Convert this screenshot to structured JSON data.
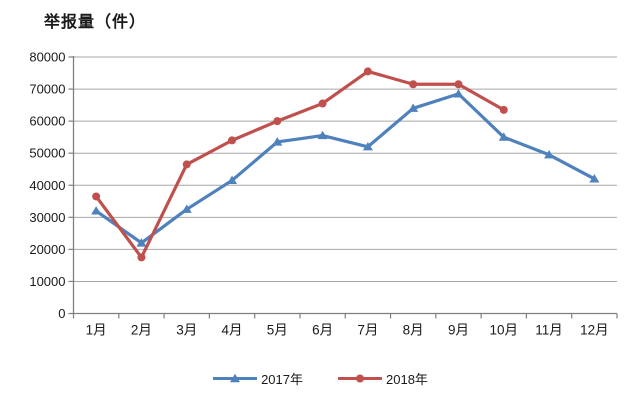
{
  "page": {
    "title": "举报量（件）"
  },
  "chart_data": {
    "type": "line",
    "title": "举报量（件）",
    "xlabel": "",
    "ylabel": "举报量（件）",
    "categories": [
      "1月",
      "2月",
      "3月",
      "4月",
      "5月",
      "6月",
      "7月",
      "8月",
      "9月",
      "10月",
      "11月",
      "12月"
    ],
    "series": [
      {
        "name": "2017年",
        "color": "#4F81BD",
        "marker": "triangle",
        "values": [
          32000,
          22000,
          32500,
          41500,
          53500,
          55500,
          52000,
          64000,
          68500,
          55000,
          49500,
          42000
        ]
      },
      {
        "name": "2018年",
        "color": "#C0504D",
        "marker": "circle",
        "values": [
          36500,
          17500,
          46500,
          54000,
          60000,
          65500,
          75500,
          71500,
          71500,
          63500
        ]
      }
    ],
    "ylim": [
      0,
      80000
    ],
    "ytick_step": 10000,
    "yticks": [
      "0",
      "10000",
      "20000",
      "30000",
      "40000",
      "50000",
      "60000",
      "70000",
      "80000"
    ],
    "grid": "horizontal-major",
    "legend_position": "bottom",
    "colors": {
      "grid": "#A6A6A6",
      "axis": "#7F7F7F",
      "tick_text": "#1a1a1a",
      "background": "#FFFFFF"
    }
  }
}
